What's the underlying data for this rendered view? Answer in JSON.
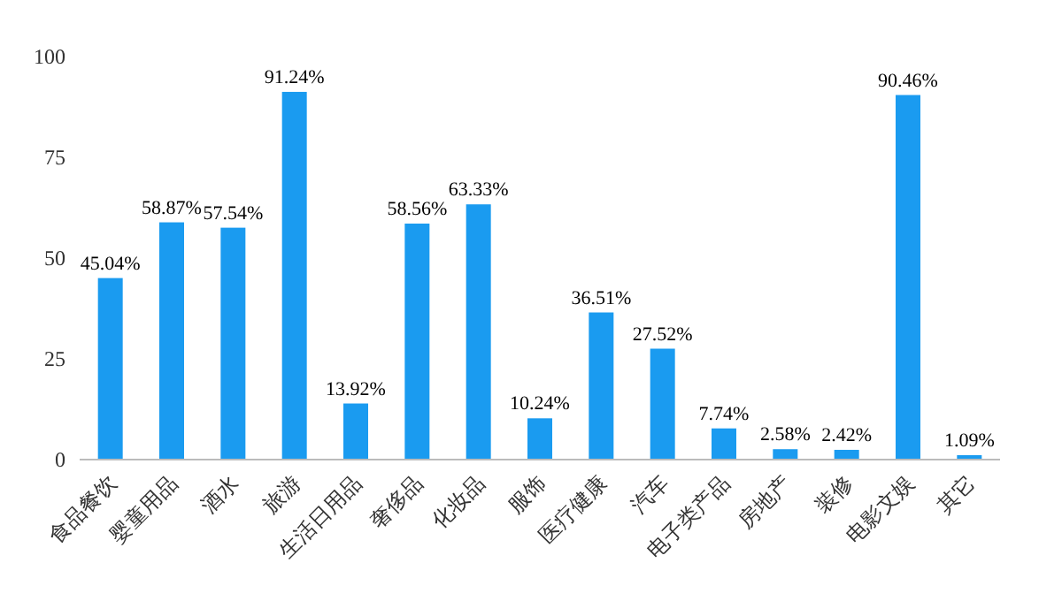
{
  "chart_data": {
    "type": "bar",
    "categories": [
      "食品餐饮",
      "婴童用品",
      "酒水",
      "旅游",
      "生活日用品",
      "奢侈品",
      "化妆品",
      "服饰",
      "医疗健康",
      "汽车",
      "电子类产品",
      "房地产",
      "装修",
      "电影文娱",
      "其它"
    ],
    "values": [
      45.04,
      58.87,
      57.54,
      91.24,
      13.92,
      58.56,
      63.33,
      10.24,
      36.51,
      27.52,
      7.74,
      2.58,
      2.42,
      90.46,
      1.09
    ],
    "value_labels": [
      "45.04%",
      "58.87%",
      "57.54%",
      "91.24%",
      "13.92%",
      "58.56%",
      "63.33%",
      "10.24%",
      "36.51%",
      "27.52%",
      "7.74%",
      "2.58%",
      "2.42%",
      "90.46%",
      "1.09%"
    ],
    "color": "#1a9bf0",
    "ylim": [
      0,
      100
    ],
    "yticks": [
      0,
      25,
      50,
      75,
      100
    ]
  }
}
